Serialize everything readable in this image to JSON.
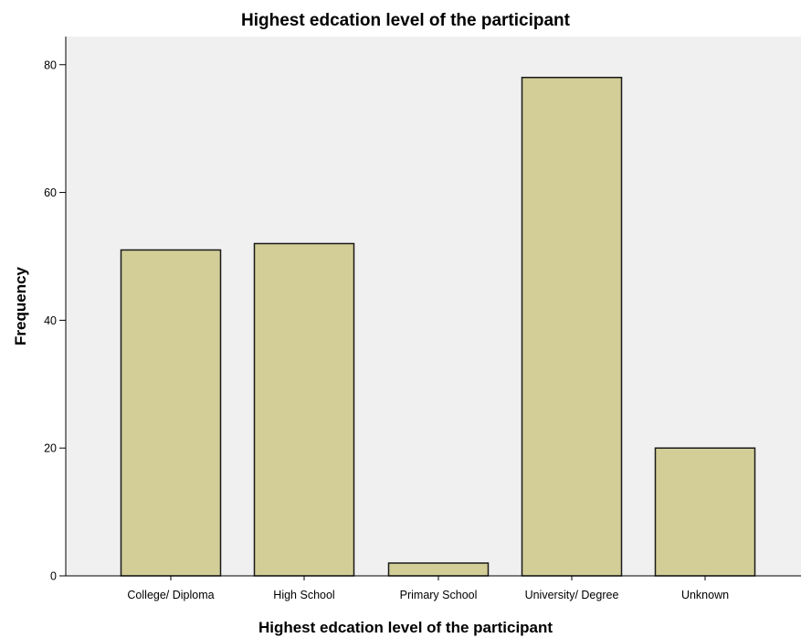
{
  "chart_data": {
    "type": "bar",
    "title": "Highest edcation level of the participant",
    "xlabel": "Highest edcation level of the participant",
    "ylabel": "Frequency",
    "categories": [
      "College/ Diploma",
      "High School",
      "Primary School",
      "University/ Degree",
      "Unknown"
    ],
    "values": [
      51,
      52,
      2,
      78,
      20
    ],
    "ylim": [
      0,
      84.4
    ],
    "yticks": [
      "0",
      "20",
      "40",
      "60",
      "80"
    ],
    "grid": false,
    "legend": "none",
    "colors": {
      "bar_fill": "#d3ce97",
      "bar_stroke": "#1a1a1a",
      "plot_background": "#f0f0f0",
      "axis": "#000000"
    }
  }
}
